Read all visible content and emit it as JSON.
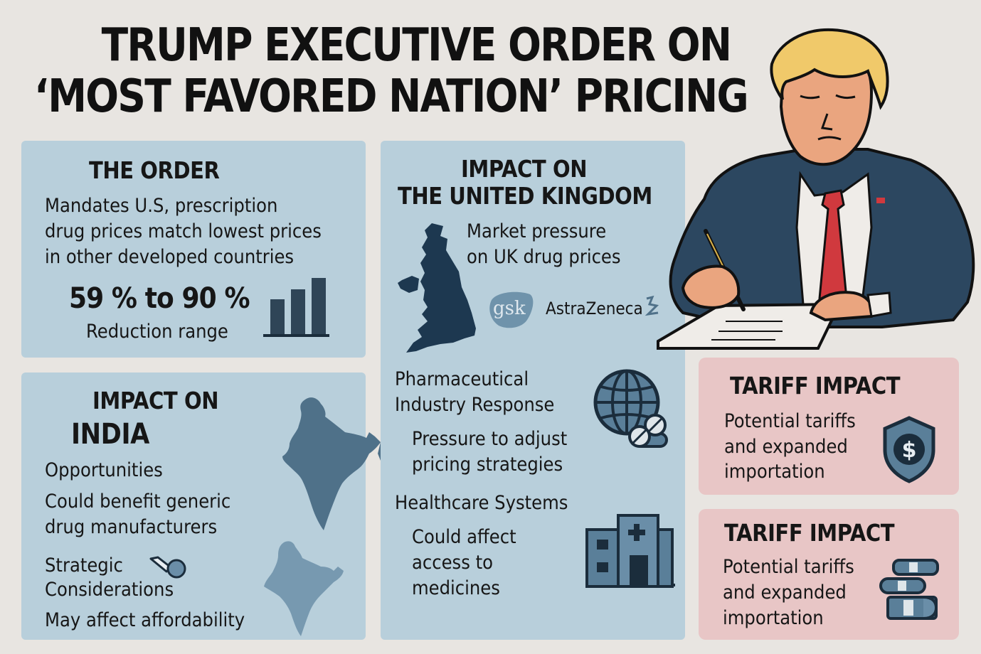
{
  "title": {
    "line1": "TRUMP EXECUTIVE ORDER ON",
    "line2": "‘MOST FAVORED NATION’ PRICING"
  },
  "the_order": {
    "heading": "THE ORDER",
    "description_lines": [
      "Mandates U.S, prescription",
      "drug prices match lowest prices",
      "in other developed countries"
    ],
    "stat": "59 % to 90 %",
    "stat_label": "Reduction range",
    "icon": "bar-chart-icon"
  },
  "india": {
    "heading_line1": "IMPACT ON",
    "heading_line2": "INDIA",
    "opportunities_label": "Opportunities",
    "opportunities_lines": [
      "Could benefit generic",
      "drug manufacturers"
    ],
    "strategic_lines": [
      "Strategic",
      "Considerations"
    ],
    "affordability": "May affect affordability",
    "icons": [
      "india-map-icon",
      "pill-magnifier-icon"
    ]
  },
  "uk": {
    "heading_line1": "IMPACT ON",
    "heading_line2": "THE UNITED KINGDOM",
    "market_lines": [
      "Market pressure",
      "on UK drug prices"
    ],
    "logos": [
      "gsk",
      "AstraZeneca"
    ],
    "pharma_heading_lines": [
      "Pharmaceutical",
      "Industry Response"
    ],
    "pharma_lines": [
      "Pressure to adjust",
      "pricing strategies"
    ],
    "health_heading": "Healthcare Systems",
    "health_lines": [
      "Could affect",
      "access to",
      "medicines"
    ],
    "icons": [
      "uk-map-icon",
      "globe-pills-icon",
      "hospital-icon"
    ]
  },
  "tariff_1": {
    "heading": "TARIFF IMPACT",
    "lines": [
      "Potential tariffs",
      "and expanded",
      "importation"
    ],
    "icon": "shield-dollar-icon"
  },
  "tariff_2": {
    "heading": "TARIFF IMPACT",
    "lines": [
      "Potential tariffs",
      "and expanded",
      "importation"
    ],
    "icon": "pill-stack-icon"
  },
  "colors": {
    "background": "#e8e5e1",
    "panel_blue": "#b8cfdb",
    "panel_pink": "#e8c6c6",
    "navy": "#1e3a52",
    "slate": "#5a7f99",
    "tie_red": "#d0393e",
    "hair": "#f0c96a",
    "skin": "#eaa57f"
  }
}
